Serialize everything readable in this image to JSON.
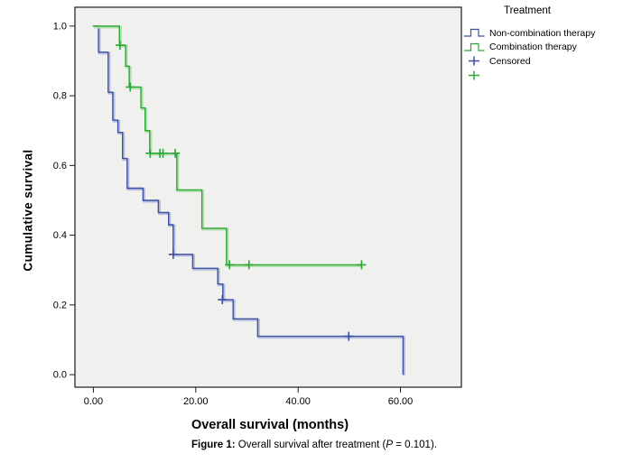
{
  "figure": {
    "xlabel": "Overall survival (months)",
    "ylabel": "Cumulative survival",
    "caption": {
      "figure_label": "Figure 1:",
      "before_p": " Overall survival after treatment (",
      "p_symbol": "P",
      "after_p": " = 0.101)."
    }
  },
  "chart_data": {
    "type": "line",
    "subtype": "kaplan-meier-step",
    "title": "",
    "xlabel": "Overall survival (months)",
    "ylabel": "Cumulative survival",
    "xlim": [
      -3.6,
      71.9
    ],
    "ylim": [
      -0.036,
      1.054
    ],
    "grid": false,
    "plot_bg": "#f0f0ee",
    "axis_color": "#1a1a1a",
    "xticks": {
      "values": [
        0,
        20,
        40,
        60
      ],
      "labels": [
        "0.00",
        "20.00",
        "40.00",
        "60.00"
      ]
    },
    "yticks": {
      "values": [
        0.0,
        0.2,
        0.4,
        0.6,
        0.8,
        1.0
      ],
      "labels": [
        "0.0",
        "0.2",
        "0.4",
        "0.6",
        "0.8",
        "1.0"
      ]
    },
    "legend": {
      "title": "Treatment",
      "entries": [
        {
          "label": "Non-combination therapy",
          "swatch": "step",
          "color": "#3b50a0"
        },
        {
          "label": "Combination therapy",
          "swatch": "step",
          "color": "#2ca636"
        },
        {
          "label": "Censored",
          "swatch": "plus",
          "color": "#3b50a0"
        },
        {
          "label": "",
          "swatch": "plus",
          "color": "#2ca636"
        }
      ]
    },
    "series": [
      {
        "name": "Non-combination therapy",
        "color": "#3b50a0",
        "halo_color": "#b8c0de",
        "step_points": [
          [
            0,
            1.0
          ],
          [
            1.0,
            1.0
          ],
          [
            1.0,
            0.925
          ],
          [
            2.9,
            0.925
          ],
          [
            2.9,
            0.81
          ],
          [
            3.8,
            0.81
          ],
          [
            3.8,
            0.73
          ],
          [
            4.8,
            0.73
          ],
          [
            4.8,
            0.695
          ],
          [
            5.7,
            0.695
          ],
          [
            5.7,
            0.62
          ],
          [
            6.6,
            0.62
          ],
          [
            6.6,
            0.535
          ],
          [
            9.7,
            0.535
          ],
          [
            9.7,
            0.5
          ],
          [
            12.7,
            0.5
          ],
          [
            12.7,
            0.465
          ],
          [
            14.7,
            0.465
          ],
          [
            14.7,
            0.43
          ],
          [
            15.6,
            0.43
          ],
          [
            15.6,
            0.345
          ],
          [
            19.4,
            0.345
          ],
          [
            19.4,
            0.305
          ],
          [
            24.3,
            0.305
          ],
          [
            24.3,
            0.26
          ],
          [
            25.3,
            0.26
          ],
          [
            25.3,
            0.215
          ],
          [
            27.3,
            0.215
          ],
          [
            27.3,
            0.16
          ],
          [
            32.1,
            0.16
          ],
          [
            32.1,
            0.11
          ],
          [
            60.5,
            0.11
          ],
          [
            60.5,
            0.0
          ]
        ],
        "censored": [
          [
            15.6,
            0.345
          ],
          [
            25.2,
            0.215
          ],
          [
            49.9,
            0.11
          ]
        ]
      },
      {
        "name": "Combination therapy",
        "color": "#2ca636",
        "halo_color": "#b4dfae",
        "step_points": [
          [
            -0.1,
            1.0
          ],
          [
            5.1,
            1.0
          ],
          [
            5.1,
            0.945
          ],
          [
            6.3,
            0.945
          ],
          [
            6.3,
            0.885
          ],
          [
            7.0,
            0.885
          ],
          [
            7.0,
            0.825
          ],
          [
            9.3,
            0.825
          ],
          [
            9.3,
            0.765
          ],
          [
            10.1,
            0.765
          ],
          [
            10.1,
            0.7
          ],
          [
            11.0,
            0.7
          ],
          [
            11.0,
            0.635
          ],
          [
            16.3,
            0.635
          ],
          [
            16.3,
            0.53
          ],
          [
            21.2,
            0.53
          ],
          [
            21.2,
            0.42
          ],
          [
            26.0,
            0.42
          ],
          [
            26.0,
            0.315
          ],
          [
            52.4,
            0.315
          ]
        ],
        "censored": [
          [
            5.2,
            0.945
          ],
          [
            7.2,
            0.825
          ],
          [
            11.1,
            0.635
          ],
          [
            13.0,
            0.635
          ],
          [
            13.6,
            0.635
          ],
          [
            16.0,
            0.635
          ],
          [
            26.6,
            0.315
          ],
          [
            30.4,
            0.315
          ],
          [
            52.4,
            0.315
          ]
        ]
      }
    ]
  }
}
